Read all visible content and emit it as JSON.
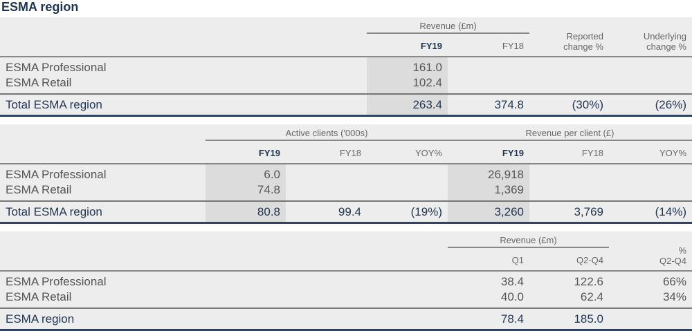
{
  "title": "ESMA region",
  "table1": {
    "group_header": "Revenue (£m)",
    "cols": [
      "FY19",
      "FY18"
    ],
    "reported": [
      "Reported",
      "change %"
    ],
    "underlying": [
      "Underlying",
      "change %"
    ],
    "rows": [
      {
        "label": "ESMA Professional",
        "fy19": "161.0"
      },
      {
        "label": "ESMA Retail",
        "fy19": "102.4"
      }
    ],
    "total": {
      "label": "Total ESMA region",
      "fy19": "263.4",
      "fy18": "374.8",
      "reported": "(30%)",
      "underlying": "(26%)"
    }
  },
  "table2": {
    "group1": "Active clients ('000s)",
    "group2": "Revenue per client (£)",
    "cols": [
      "FY19",
      "FY18",
      "YOY%",
      "FY19",
      "FY18",
      "YOY%"
    ],
    "rows": [
      {
        "label": "ESMA Professional",
        "ac_fy19": "6.0",
        "rpc_fy19": "26,918"
      },
      {
        "label": "ESMA Retail",
        "ac_fy19": "74.8",
        "rpc_fy19": "1,369"
      }
    ],
    "total": {
      "label": "Total ESMA region",
      "ac_fy19": "80.8",
      "ac_fy18": "99.4",
      "ac_yoy": "(19%)",
      "rpc_fy19": "3,260",
      "rpc_fy18": "3,769",
      "rpc_yoy": "(14%)"
    }
  },
  "table3": {
    "group_header": "Revenue (£m)",
    "cols": [
      "Q1",
      "Q2-Q4"
    ],
    "pct": [
      "%",
      "Q2-Q4"
    ],
    "rows": [
      {
        "label": "ESMA Professional",
        "q1": "38.4",
        "q2q4": "122.6",
        "pct": "66%"
      },
      {
        "label": "ESMA Retail",
        "q1": "40.0",
        "q2q4": "62.4",
        "pct": "34%"
      }
    ],
    "total": {
      "label": "ESMA region",
      "q1": "78.4",
      "q2q4": "185.0"
    }
  }
}
